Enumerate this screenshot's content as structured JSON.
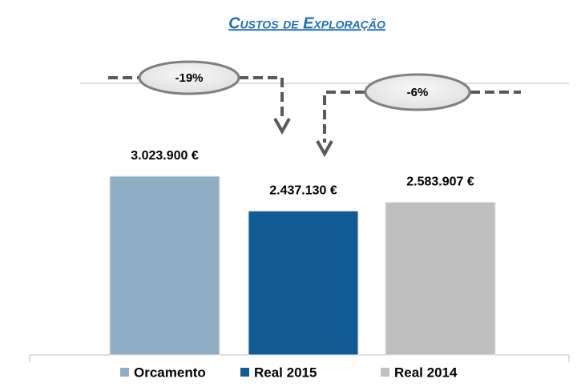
{
  "chart_data": {
    "type": "bar",
    "title": "Custos de Exploração",
    "series": [
      {
        "name": "Orcamento",
        "color": "#8fadc4",
        "values": [
          3023900
        ],
        "value_labels": [
          "3.023.900 €"
        ]
      },
      {
        "name": "Real 2015",
        "color": "#105a96",
        "values": [
          2437130
        ],
        "value_labels": [
          "2.437.130 €"
        ]
      },
      {
        "name": "Real 2014",
        "color": "#bfbfbf",
        "values": [
          2583907
        ],
        "value_labels": [
          "2.583.907 €"
        ]
      }
    ],
    "annotations": [
      {
        "text": "-19%"
      },
      {
        "text": "-6%"
      }
    ]
  }
}
